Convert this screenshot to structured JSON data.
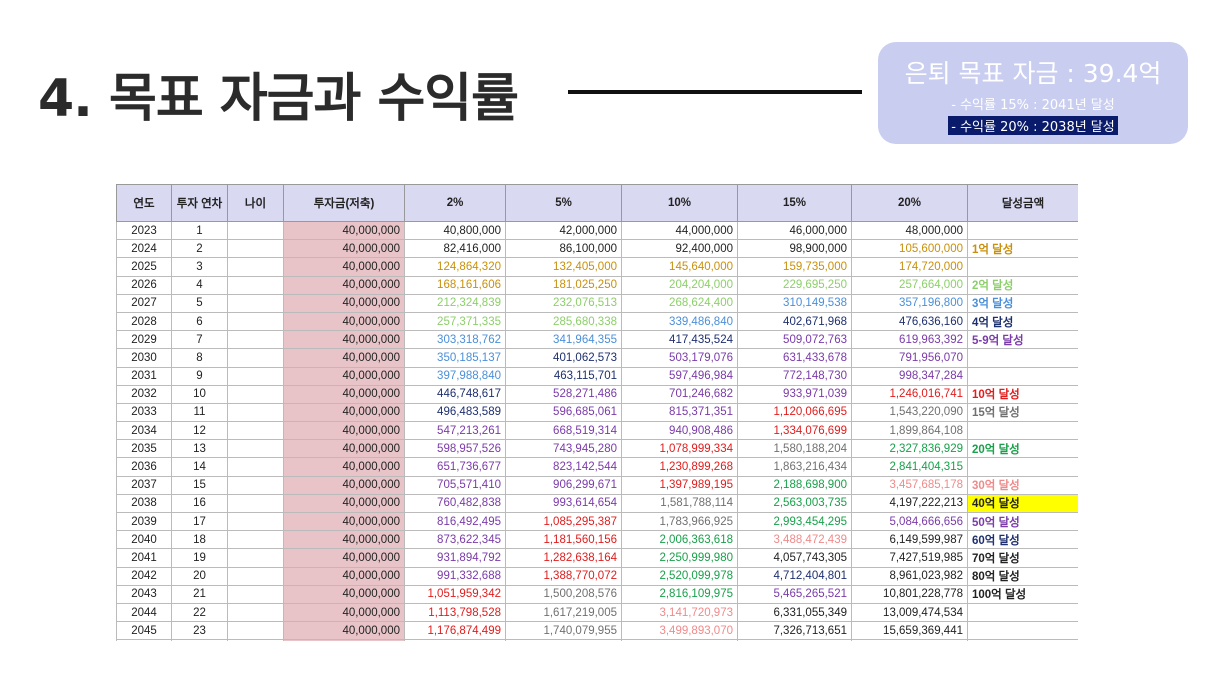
{
  "title": "4. 목표 자금과 수익률",
  "goal": {
    "main": "은퇴 목표 자금 : 39.4억",
    "line1": "- 수익률 15% : 2041년 달성",
    "line2": "- 수익률 20% : 2038년 달성"
  },
  "colors": {
    "black": "#222222",
    "gold": "#c8900c",
    "lightgreen": "#8ccf6a",
    "blue": "#4a8fd9",
    "navy": "#1e2f6e",
    "purple": "#7a3aa8",
    "red": "#e01c1c",
    "gray": "#707070",
    "green": "#18a04a",
    "pink": "#f08a8a",
    "highlight": "#ffff00"
  },
  "table": {
    "headers": [
      "연도",
      "투자 연차",
      "나이",
      "투자금(저축)",
      "2%",
      "5%",
      "10%",
      "15%",
      "20%",
      "달성금액"
    ],
    "rows": [
      {
        "year": "2023",
        "n": "1",
        "inv": "40,000,000",
        "v": [
          "40,800,000",
          "42,000,000",
          "44,000,000",
          "46,000,000",
          "48,000,000"
        ],
        "c": [
          "black",
          "black",
          "black",
          "black",
          "black"
        ],
        "ach": "",
        "ac": "black"
      },
      {
        "year": "2024",
        "n": "2",
        "inv": "40,000,000",
        "v": [
          "82,416,000",
          "86,100,000",
          "92,400,000",
          "98,900,000",
          "105,600,000"
        ],
        "c": [
          "black",
          "black",
          "black",
          "black",
          "gold"
        ],
        "ach": "1억 달성",
        "ac": "gold"
      },
      {
        "year": "2025",
        "n": "3",
        "inv": "40,000,000",
        "v": [
          "124,864,320",
          "132,405,000",
          "145,640,000",
          "159,735,000",
          "174,720,000"
        ],
        "c": [
          "gold",
          "gold",
          "gold",
          "gold",
          "gold"
        ],
        "ach": "",
        "ac": "black"
      },
      {
        "year": "2026",
        "n": "4",
        "inv": "40,000,000",
        "v": [
          "168,161,606",
          "181,025,250",
          "204,204,000",
          "229,695,250",
          "257,664,000"
        ],
        "c": [
          "gold",
          "gold",
          "lightgreen",
          "lightgreen",
          "lightgreen"
        ],
        "ach": "2억 달성",
        "ac": "lightgreen"
      },
      {
        "year": "2027",
        "n": "5",
        "inv": "40,000,000",
        "v": [
          "212,324,839",
          "232,076,513",
          "268,624,400",
          "310,149,538",
          "357,196,800"
        ],
        "c": [
          "lightgreen",
          "lightgreen",
          "lightgreen",
          "blue",
          "blue"
        ],
        "ach": "3억 달성",
        "ac": "blue"
      },
      {
        "year": "2028",
        "n": "6",
        "inv": "40,000,000",
        "v": [
          "257,371,335",
          "285,680,338",
          "339,486,840",
          "402,671,968",
          "476,636,160"
        ],
        "c": [
          "lightgreen",
          "lightgreen",
          "blue",
          "navy",
          "navy"
        ],
        "ach": "4억 달성",
        "ac": "navy"
      },
      {
        "year": "2029",
        "n": "7",
        "inv": "40,000,000",
        "v": [
          "303,318,762",
          "341,964,355",
          "417,435,524",
          "509,072,763",
          "619,963,392"
        ],
        "c": [
          "blue",
          "blue",
          "navy",
          "purple",
          "purple"
        ],
        "ach": "5-9억 달성",
        "ac": "purple"
      },
      {
        "year": "2030",
        "n": "8",
        "inv": "40,000,000",
        "v": [
          "350,185,137",
          "401,062,573",
          "503,179,076",
          "631,433,678",
          "791,956,070"
        ],
        "c": [
          "blue",
          "navy",
          "purple",
          "purple",
          "purple"
        ],
        "ach": "",
        "ac": "black"
      },
      {
        "year": "2031",
        "n": "9",
        "inv": "40,000,000",
        "v": [
          "397,988,840",
          "463,115,701",
          "597,496,984",
          "772,148,730",
          "998,347,284"
        ],
        "c": [
          "blue",
          "navy",
          "purple",
          "purple",
          "purple"
        ],
        "ach": "",
        "ac": "black"
      },
      {
        "year": "2032",
        "n": "10",
        "inv": "40,000,000",
        "v": [
          "446,748,617",
          "528,271,486",
          "701,246,682",
          "933,971,039",
          "1,246,016,741"
        ],
        "c": [
          "navy",
          "purple",
          "purple",
          "purple",
          "red"
        ],
        "ach": "10억 달성",
        "ac": "red"
      },
      {
        "year": "2033",
        "n": "11",
        "inv": "40,000,000",
        "v": [
          "496,483,589",
          "596,685,061",
          "815,371,351",
          "1,120,066,695",
          "1,543,220,090"
        ],
        "c": [
          "navy",
          "purple",
          "purple",
          "red",
          "gray"
        ],
        "ach": "15억 달성",
        "ac": "gray"
      },
      {
        "year": "2034",
        "n": "12",
        "inv": "40,000,000",
        "v": [
          "547,213,261",
          "668,519,314",
          "940,908,486",
          "1,334,076,699",
          "1,899,864,108"
        ],
        "c": [
          "purple",
          "purple",
          "purple",
          "red",
          "gray"
        ],
        "ach": "",
        "ac": "black"
      },
      {
        "year": "2035",
        "n": "13",
        "inv": "40,000,000",
        "v": [
          "598,957,526",
          "743,945,280",
          "1,078,999,334",
          "1,580,188,204",
          "2,327,836,929"
        ],
        "c": [
          "purple",
          "purple",
          "red",
          "gray",
          "green"
        ],
        "ach": "20억 달성",
        "ac": "green"
      },
      {
        "year": "2036",
        "n": "14",
        "inv": "40,000,000",
        "v": [
          "651,736,677",
          "823,142,544",
          "1,230,899,268",
          "1,863,216,434",
          "2,841,404,315"
        ],
        "c": [
          "purple",
          "purple",
          "red",
          "gray",
          "green"
        ],
        "ach": "",
        "ac": "black"
      },
      {
        "year": "2037",
        "n": "15",
        "inv": "40,000,000",
        "v": [
          "705,571,410",
          "906,299,671",
          "1,397,989,195",
          "2,188,698,900",
          "3,457,685,178"
        ],
        "c": [
          "purple",
          "purple",
          "red",
          "green",
          "pink"
        ],
        "ach": "30억 달성",
        "ac": "pink"
      },
      {
        "year": "2038",
        "n": "16",
        "inv": "40,000,000",
        "v": [
          "760,482,838",
          "993,614,654",
          "1,581,788,114",
          "2,563,003,735",
          "4,197,222,213"
        ],
        "c": [
          "purple",
          "purple",
          "gray",
          "green",
          "black"
        ],
        "ach": "40억 달성",
        "ac": "black",
        "hl": true
      },
      {
        "year": "2039",
        "n": "17",
        "inv": "40,000,000",
        "v": [
          "816,492,495",
          "1,085,295,387",
          "1,783,966,925",
          "2,993,454,295",
          "5,084,666,656"
        ],
        "c": [
          "purple",
          "red",
          "gray",
          "green",
          "purple"
        ],
        "ach": "50억 달성",
        "ac": "purple"
      },
      {
        "year": "2040",
        "n": "18",
        "inv": "40,000,000",
        "v": [
          "873,622,345",
          "1,181,560,156",
          "2,006,363,618",
          "3,488,472,439",
          "6,149,599,987"
        ],
        "c": [
          "purple",
          "red",
          "green",
          "pink",
          "black"
        ],
        "ach": "60억 달성",
        "ac": "navy"
      },
      {
        "year": "2041",
        "n": "19",
        "inv": "40,000,000",
        "v": [
          "931,894,792",
          "1,282,638,164",
          "2,250,999,980",
          "4,057,743,305",
          "7,427,519,985"
        ],
        "c": [
          "purple",
          "red",
          "green",
          "black",
          "black"
        ],
        "ach": "70억 달성",
        "ac": "black"
      },
      {
        "year": "2042",
        "n": "20",
        "inv": "40,000,000",
        "v": [
          "991,332,688",
          "1,388,770,072",
          "2,520,099,978",
          "4,712,404,801",
          "8,961,023,982"
        ],
        "c": [
          "purple",
          "red",
          "green",
          "navy",
          "black"
        ],
        "ach": "80억 달성",
        "ac": "black"
      },
      {
        "year": "2043",
        "n": "21",
        "inv": "40,000,000",
        "v": [
          "1,051,959,342",
          "1,500,208,576",
          "2,816,109,975",
          "5,465,265,521",
          "10,801,228,778"
        ],
        "c": [
          "red",
          "gray",
          "green",
          "purple",
          "black"
        ],
        "ach": "100억 달성",
        "ac": "black"
      },
      {
        "year": "2044",
        "n": "22",
        "inv": "40,000,000",
        "v": [
          "1,113,798,528",
          "1,617,219,005",
          "3,141,720,973",
          "6,331,055,349",
          "13,009,474,534"
        ],
        "c": [
          "red",
          "gray",
          "pink",
          "black",
          "black"
        ],
        "ach": "",
        "ac": "black"
      },
      {
        "year": "2045",
        "n": "23",
        "inv": "40,000,000",
        "v": [
          "1,176,874,499",
          "1,740,079,955",
          "3,499,893,070",
          "7,326,713,651",
          "15,659,369,441"
        ],
        "c": [
          "red",
          "gray",
          "pink",
          "black",
          "black"
        ],
        "ach": "",
        "ac": "black"
      },
      {
        "year": "",
        "n": "",
        "inv": "",
        "v": [
          "",
          "",
          "",
          "",
          ""
        ],
        "c": [
          "black",
          "black",
          "black",
          "black",
          "black"
        ],
        "ach": "",
        "ac": "black"
      }
    ]
  }
}
